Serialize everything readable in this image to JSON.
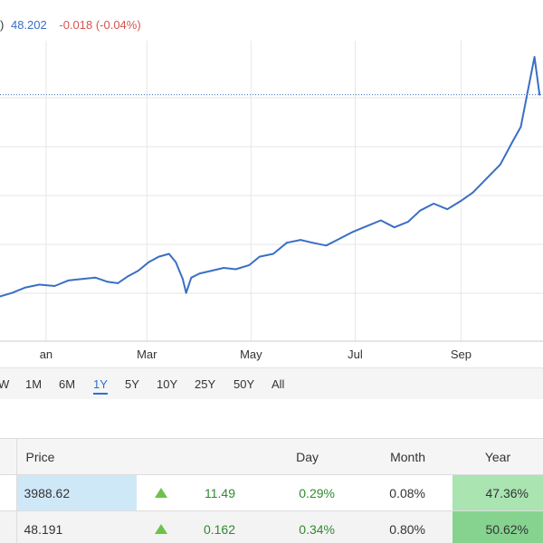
{
  "header": {
    "paren": ")",
    "price": "48.202",
    "change": "-0.018 (-0.04%)"
  },
  "colors": {
    "line": "#3a6fc4",
    "grid": "#e6e6e6",
    "reference_line": "#3a6fc4",
    "positive": "#2f8a2f",
    "negative": "#d9534f",
    "range_active": "#2e6fd8"
  },
  "chart_data": {
    "type": "line",
    "x_tick_labels": [
      "an",
      "Mar",
      "May",
      "Jul",
      "Sep"
    ],
    "x_ticks": [
      "2021-01-01",
      "2021-03-01",
      "2021-05-01",
      "2021-07-01",
      "2021-09-01"
    ],
    "xlim": [
      "2020-12-05",
      "2021-10-19"
    ],
    "y_tick_labels": [],
    "y_axis": "relative scale, tick labels not visible",
    "grid": "horizontal gridlines",
    "reference_line": {
      "style": "dotted",
      "level": "current price 48.202"
    },
    "series": [
      {
        "x": [
          "2020-12-05",
          "2020-12-12",
          "2020-12-20",
          "2020-12-28",
          "2021-01-06",
          "2021-01-14",
          "2021-01-22",
          "2021-01-30",
          "2021-02-06",
          "2021-02-12",
          "2021-02-18",
          "2021-02-24",
          "2021-03-02",
          "2021-03-08",
          "2021-03-14",
          "2021-03-18",
          "2021-03-22",
          "2021-03-24",
          "2021-03-27",
          "2021-04-01",
          "2021-04-08",
          "2021-04-15",
          "2021-04-22",
          "2021-04-30",
          "2021-05-06",
          "2021-05-14",
          "2021-05-22",
          "2021-05-30",
          "2021-06-06",
          "2021-06-14",
          "2021-06-22",
          "2021-06-30",
          "2021-07-08",
          "2021-07-16",
          "2021-07-24",
          "2021-08-01",
          "2021-08-08",
          "2021-08-16",
          "2021-08-24",
          "2021-09-01",
          "2021-09-08",
          "2021-09-16",
          "2021-09-24",
          "2021-10-01",
          "2021-10-06",
          "2021-10-10",
          "2021-10-14",
          "2021-10-17"
        ],
        "y": [
          3.5,
          6,
          10,
          12,
          11,
          15,
          16,
          17,
          14,
          13,
          18,
          22,
          28,
          32,
          34,
          28,
          16,
          6,
          17,
          20,
          22,
          24,
          23,
          26,
          32,
          34,
          42,
          44,
          42,
          40,
          45,
          50,
          54,
          58,
          53,
          57,
          65,
          70,
          66,
          72,
          78,
          88,
          98,
          114,
          125,
          150,
          175,
          148
        ]
      }
    ]
  },
  "ranges": [
    "W",
    "1M",
    "6M",
    "1Y",
    "5Y",
    "10Y",
    "25Y",
    "50Y",
    "All"
  ],
  "active_range": "1Y",
  "table": {
    "headers": {
      "price": "Price",
      "day": "Day",
      "month": "Month",
      "year": "Year"
    },
    "rows": [
      {
        "price": "3988.62",
        "change": "11.49",
        "day_pct": "0.29%",
        "month": "0.08%",
        "year": "47.36%"
      },
      {
        "price": "48.191",
        "change": "0.162",
        "day_pct": "0.34%",
        "month": "0.80%",
        "year": "50.62%"
      }
    ]
  }
}
